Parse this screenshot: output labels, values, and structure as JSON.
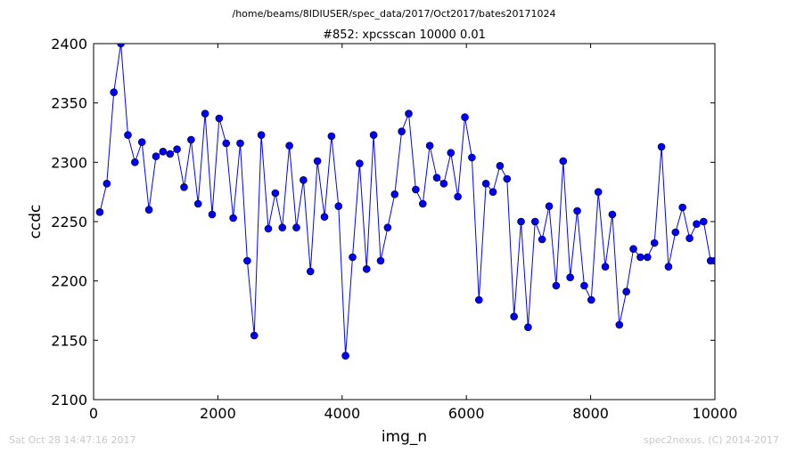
{
  "header": {
    "file_path": "/home/beams/8IDIUSER/spec_data/2017/Oct2017/bates20171024"
  },
  "footer": {
    "timestamp": "Sat Oct 28 14:47:16 2017",
    "credit": "spec2nexus, (C) 2014-2017"
  },
  "chart_data": {
    "type": "line",
    "title": "#852: xpcsscan 10000 0.01",
    "xlabel": "img_n",
    "ylabel": "ccdc",
    "xlim": [
      0,
      10000
    ],
    "ylim": [
      2100,
      2400
    ],
    "xticks": [
      0,
      2000,
      4000,
      6000,
      8000,
      10000
    ],
    "yticks": [
      2100,
      2150,
      2200,
      2250,
      2300,
      2350,
      2400
    ],
    "grid": false,
    "line_color": "#0000ff",
    "marker": "circle",
    "series": [
      {
        "x": [
          100,
          213,
          326,
          439,
          552,
          665,
          778,
          891,
          1004,
          1117,
          1230,
          1343,
          1456,
          1569,
          1682,
          1795,
          1908,
          2021,
          2134,
          2247,
          2360,
          2473,
          2586,
          2699,
          2812,
          2925,
          3038,
          3151,
          3264,
          3377,
          3490,
          3603,
          3716,
          3829,
          3942,
          4055,
          4168,
          4281,
          4394,
          4507,
          4620,
          4733,
          4846,
          4959,
          5072,
          5185,
          5298,
          5411,
          5524,
          5637,
          5750,
          5863,
          5976,
          6089,
          6202,
          6315,
          6428,
          6541,
          6654,
          6767,
          6880,
          6993,
          7106,
          7219,
          7332,
          7445,
          7558,
          7671,
          7784,
          7897,
          8010,
          8123,
          8236,
          8349,
          8462,
          8575,
          8688,
          8801,
          8914,
          9027,
          9140,
          9253,
          9366,
          9479,
          9592,
          9705,
          9818,
          9931,
          10000
        ],
        "y": [
          2258,
          2282,
          2359,
          2400,
          2323,
          2300,
          2317,
          2260,
          2305,
          2309,
          2307,
          2311,
          2279,
          2319,
          2265,
          2341,
          2256,
          2337,
          2316,
          2253,
          2316,
          2217,
          2154,
          2323,
          2244,
          2274,
          2245,
          2314,
          2245,
          2285,
          2208,
          2301,
          2254,
          2322,
          2263,
          2137,
          2220,
          2299,
          2210,
          2323,
          2217,
          2245,
          2273,
          2326,
          2341,
          2277,
          2265,
          2314,
          2287,
          2282,
          2308,
          2271,
          2338,
          2304,
          2184,
          2282,
          2275,
          2297,
          2286,
          2170,
          2250,
          2161,
          2250,
          2235,
          2263,
          2196,
          2301,
          2203,
          2259,
          2196,
          2184,
          2275,
          2212,
          2256,
          2163,
          2191,
          2227,
          2220,
          2220,
          2232,
          2313,
          2212,
          2241,
          2262,
          2236,
          2248,
          2250,
          2217,
          2217
        ]
      }
    ]
  }
}
